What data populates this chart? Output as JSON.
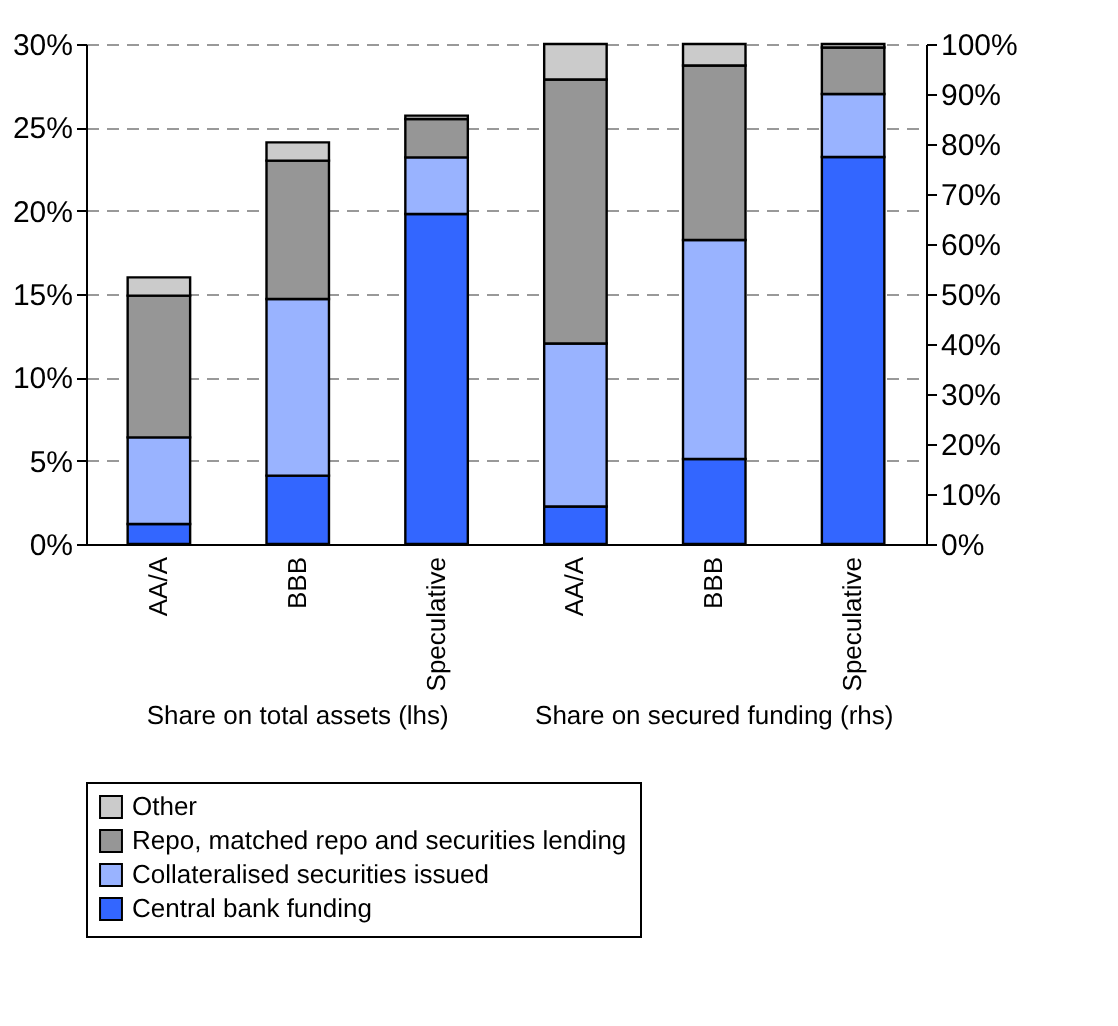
{
  "chart_data": {
    "type": "bar",
    "stacked": true,
    "categories": [
      "AA/A",
      "BBB",
      "Speculative",
      "AA/A",
      "BBB",
      "Speculative"
    ],
    "series": [
      {
        "name": "Central bank funding",
        "color": "#3366ff",
        "values": [
          1.2,
          4.1,
          19.8,
          null,
          null,
          null
        ]
      },
      {
        "name": "Collateralised securities issued",
        "color": "#99b3ff",
        "values": [
          5.2,
          10.6,
          3.4,
          null,
          null,
          null
        ]
      },
      {
        "name": "Repo, matched repo and securities lending",
        "color": "#969696",
        "values": [
          8.5,
          8.3,
          2.3,
          null,
          null,
          null
        ]
      },
      {
        "name": "Other",
        "color": "#cbcbcb",
        "values": [
          1.1,
          1.1,
          0.2,
          null,
          null,
          null
        ]
      },
      {
        "color": "#3366ff",
        "axis": "y2",
        "values": [
          null,
          null,
          null,
          7.5,
          17.0,
          77.4
        ]
      },
      {
        "color": "#99b3ff",
        "axis": "y2",
        "values": [
          null,
          null,
          null,
          32.6,
          43.8,
          12.6
        ]
      },
      {
        "color": "#969696",
        "axis": "y2",
        "values": [
          null,
          null,
          null,
          52.8,
          34.9,
          9.3
        ]
      },
      {
        "color": "#cbcbcb",
        "axis": "y2",
        "values": [
          null,
          null,
          null,
          7.1,
          4.3,
          0.7
        ]
      }
    ],
    "annotations": [
      "Share on total assets (lhs)",
      "Share on secured funding (rhs)"
    ],
    "ylim": [
      0,
      30
    ],
    "yticks": [
      {
        "value": 0,
        "label": "0%"
      },
      {
        "value": 5,
        "label": "5%"
      },
      {
        "value": 10,
        "label": "10%"
      },
      {
        "value": 15,
        "label": "15%"
      },
      {
        "value": 20,
        "label": "20%"
      },
      {
        "value": 25,
        "label": "25%"
      },
      {
        "value": 30,
        "label": "30%"
      }
    ],
    "y2lim": [
      0,
      100
    ],
    "y2ticks": [
      {
        "value": 0,
        "label": "0%"
      },
      {
        "value": 10,
        "label": "10%"
      },
      {
        "value": 20,
        "label": "20%"
      },
      {
        "value": 30,
        "label": "30%"
      },
      {
        "value": 40,
        "label": "40%"
      },
      {
        "value": 50,
        "label": "50%"
      },
      {
        "value": 60,
        "label": "60%"
      },
      {
        "value": 70,
        "label": "70%"
      },
      {
        "value": 80,
        "label": "80%"
      },
      {
        "value": 90,
        "label": "90%"
      },
      {
        "value": 100,
        "label": "100%"
      }
    ],
    "grid": "y",
    "legend": "bottom"
  }
}
